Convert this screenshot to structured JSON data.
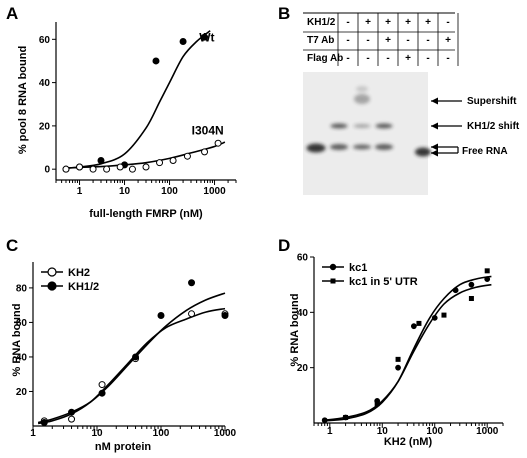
{
  "figure": {
    "panel_labels": [
      "A",
      "B",
      "C",
      "D"
    ]
  },
  "chart_data": [
    {
      "panel": "A",
      "type": "scatter",
      "xlabel": "full-length FMRP (nM)",
      "ylabel": "% pool 8 RNA bound",
      "xscale": "log",
      "xlim": [
        0.3,
        3000
      ],
      "ylim": [
        -5,
        68
      ],
      "xticks": [
        1,
        10,
        100,
        1000
      ],
      "xtick_labels": [
        "1",
        "10",
        "100",
        "1000"
      ],
      "yticks": [
        0,
        20,
        40,
        60
      ],
      "ytick_labels": [
        "0",
        "20",
        "40",
        "60"
      ],
      "grid": false,
      "series": [
        {
          "name": "Wt",
          "marker": "filled",
          "label_xy": [
            1000,
            59
          ],
          "x": [
            0.5,
            1,
            3,
            10,
            50,
            200,
            600
          ],
          "y": [
            0,
            1,
            4,
            2,
            50,
            59,
            61
          ],
          "fit_x": [
            0.5,
            1,
            3,
            10,
            30,
            60,
            100,
            200,
            400,
            800
          ],
          "fit_y": [
            0.5,
            1,
            2.5,
            7,
            19,
            31,
            40,
            52,
            59,
            64
          ]
        },
        {
          "name": "I304N",
          "marker": "open",
          "label_xy": [
            1600,
            16
          ],
          "x": [
            0.5,
            1,
            2,
            4,
            8,
            15,
            30,
            60,
            120,
            250,
            600,
            1200
          ],
          "y": [
            0,
            1,
            0,
            0,
            1,
            0,
            1,
            3,
            4,
            6,
            8,
            12
          ],
          "fit_x": [
            0.5,
            1,
            3,
            10,
            30,
            100,
            300,
            1000,
            1700
          ],
          "fit_y": [
            0.5,
            0.8,
            1.2,
            2,
            3,
            5,
            7.5,
            10.5,
            12.5
          ]
        }
      ]
    },
    {
      "panel": "B",
      "type": "gel",
      "rows": [
        {
          "label": "KH1/2",
          "values": [
            "-",
            "+",
            "+",
            "+",
            "+",
            "-"
          ]
        },
        {
          "label": "T7 Ab",
          "values": [
            "-",
            "-",
            "+",
            "-",
            "-",
            "+"
          ]
        },
        {
          "label": "Flag Ab",
          "values": [
            "-",
            "-",
            "-",
            "+",
            "-",
            "-"
          ]
        }
      ],
      "annotations": [
        "Supershift",
        "KH1/2 shift",
        "Free RNA"
      ]
    },
    {
      "panel": "C",
      "type": "scatter",
      "xlabel": "nM protein",
      "ylabel": "% RNA bound",
      "xscale": "log",
      "xlim": [
        1,
        1000
      ],
      "ylim": [
        0,
        95
      ],
      "xticks": [
        1,
        10,
        100,
        1000
      ],
      "xtick_labels": [
        "1",
        "10",
        "100",
        "1000"
      ],
      "yticks": [
        20,
        40,
        60,
        80
      ],
      "ytick_labels": [
        "20",
        "40",
        "60",
        "80"
      ],
      "grid": false,
      "legend": "top-left",
      "series": [
        {
          "name": "KH2",
          "marker": "open",
          "x": [
            1.5,
            4,
            12,
            40,
            300,
            1000
          ],
          "y": [
            3,
            4,
            24,
            39,
            65,
            65
          ],
          "fit_x": [
            1.2,
            2,
            4,
            8,
            15,
            30,
            60,
            120,
            250,
            500,
            1000
          ],
          "fit_y": [
            1.5,
            3,
            7,
            14,
            24,
            36,
            48,
            57,
            62,
            66,
            68
          ]
        },
        {
          "name": "KH1/2",
          "marker": "filled",
          "x": [
            1.5,
            4,
            12,
            40,
            100,
            300,
            1000
          ],
          "y": [
            2,
            8,
            19,
            40,
            64,
            83,
            64
          ],
          "fit_x": [
            1.2,
            2,
            4,
            8,
            15,
            30,
            60,
            120,
            250,
            500,
            1000
          ],
          "fit_y": [
            2,
            4,
            8,
            14,
            23,
            35,
            47,
            58,
            67,
            73,
            77
          ]
        }
      ]
    },
    {
      "panel": "D",
      "type": "scatter",
      "xlabel": "KH2 (nM)",
      "ylabel": "% RNA bound",
      "xscale": "log",
      "xlim": [
        0.5,
        2000
      ],
      "ylim": [
        0,
        60
      ],
      "xticks": [
        1,
        10,
        100,
        1000
      ],
      "xtick_labels": [
        "1",
        "10",
        "100",
        "1000"
      ],
      "yticks": [
        20,
        40,
        60
      ],
      "ytick_labels": [
        "20",
        "40",
        "60"
      ],
      "grid": false,
      "legend": "top-left",
      "series": [
        {
          "name": "kc1",
          "marker": "filled",
          "x": [
            0.8,
            2,
            8,
            20,
            40,
            100,
            250,
            500,
            1000
          ],
          "y": [
            1,
            2,
            8,
            20,
            35,
            38,
            48,
            50,
            52
          ],
          "fit_x": [
            0.8,
            2,
            5,
            10,
            20,
            40,
            80,
            150,
            300,
            600,
            1200
          ],
          "fit_y": [
            1,
            2,
            4,
            8,
            15,
            26,
            36,
            43,
            47,
            49,
            50
          ]
        },
        {
          "name": "kc1 in 5' UTR",
          "marker": "square",
          "x": [
            2,
            8,
            20,
            50,
            150,
            500,
            1000
          ],
          "y": [
            2,
            7,
            23,
            36,
            39,
            45,
            55
          ],
          "fit_x": [
            0.8,
            2,
            5,
            10,
            20,
            40,
            80,
            150,
            300,
            600,
            1200
          ],
          "fit_y": [
            0.8,
            1.5,
            3.5,
            7.5,
            15,
            27,
            38,
            45,
            50,
            52,
            53
          ]
        }
      ]
    }
  ]
}
